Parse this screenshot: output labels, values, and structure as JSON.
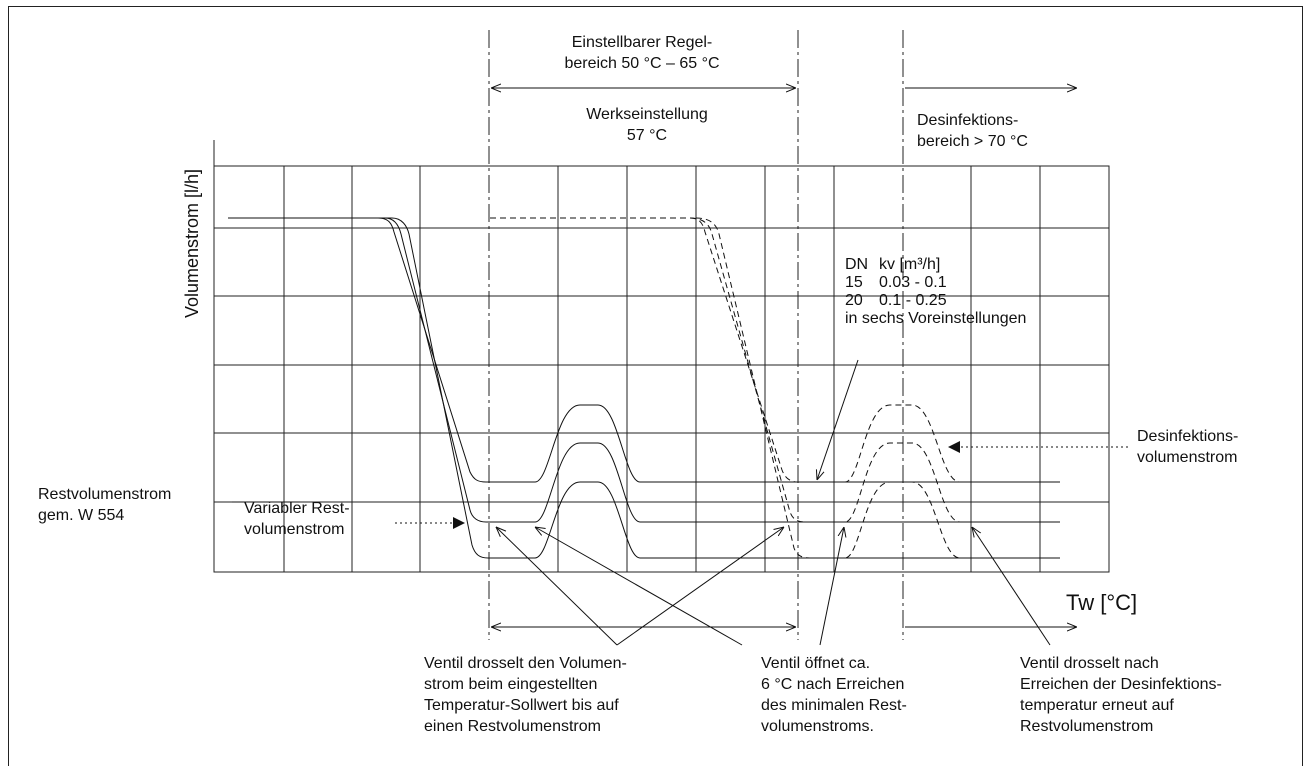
{
  "diagram": {
    "y_axis_label": "Volumenstrom [l/h]",
    "x_axis_label": "Tw [°C]",
    "range_label": "Einstellbarer Regel-\nbereich 50 °C – 65 °C",
    "factory_label": "Werkseinstellung\n57 °C",
    "disinfection_range_label": "Desinfektions-\nbereich > 70 °C",
    "kv_table": {
      "header": [
        "DN",
        "kv [m³/h]"
      ],
      "rows": [
        [
          "15",
          "0.03 - 0.1"
        ],
        [
          "20",
          "0.1 - 0.25"
        ]
      ],
      "note": "in sechs Voreinstellungen"
    },
    "disinfection_flow_label": "Desinfektions-\nvolumenstrom",
    "residual_flow_label": "Restvolumenstrom\ngem. W 554",
    "variable_residual_label": "Variabler Rest-\nvolumenstrom",
    "annotations": {
      "throttle_setpoint": "Ventil drosselt den Volumen-\nstrom beim eingestellten\nTemperatur-Sollwert bis auf\neinen Restvolumenstrom",
      "opens_after": "Ventil öffnet ca.\n6 °C nach Erreichen\ndes minimalen Rest-\nvolumenstroms.",
      "throttle_disinfection": "Ventil drosselt nach\nErreichen der Desinfektions-\ntemperatur erneut auf\nRestvolumenstrom"
    },
    "colors": {
      "line": "#111111",
      "grid": "#222222"
    }
  }
}
